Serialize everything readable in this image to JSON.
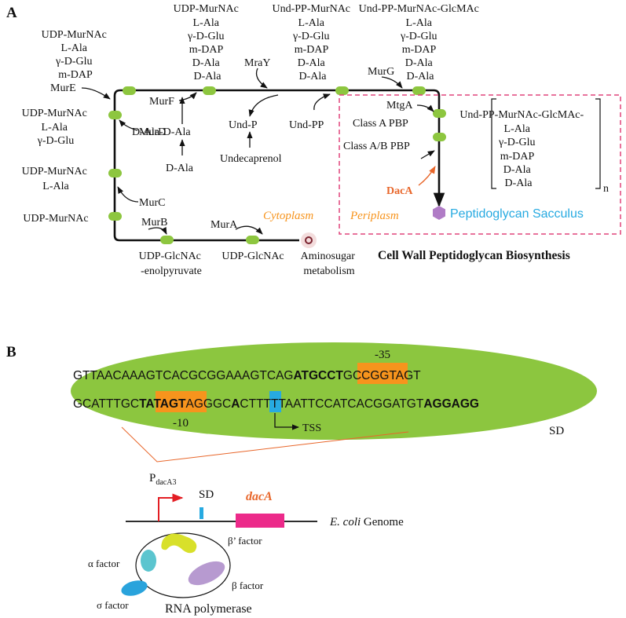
{
  "panel_a": {
    "label": "A",
    "intermediates": {
      "udp_glcnac": "UDP-GlcNAc",
      "udp_glcnac_enol": [
        "UDP-GlcNAc",
        "-enolpyruvate"
      ],
      "udp_murnac": "UDP-MurNAc",
      "udp_murnac_la": [
        "UDP-MurNAc",
        "L-Ala"
      ],
      "udp_murnac_la_glu": [
        "UDP-MurNAc",
        "L-Ala",
        "γ-D-Glu"
      ],
      "udp_murnac_la_glu_dap": [
        "UDP-MurNAc",
        "L-Ala",
        "γ-D-Glu",
        "m-DAP"
      ],
      "udp_murnac_penta": [
        "UDP-MurNAc",
        "L-Ala",
        "γ-D-Glu",
        "m-DAP",
        "D-Ala",
        "D-Ala"
      ],
      "und_pp_murnac_penta": [
        "Und-PP-MurNAc",
        "L-Ala",
        "γ-D-Glu",
        "m-DAP",
        "D-Ala",
        "D-Ala"
      ],
      "und_pp_murnac_glcmac_penta": [
        "Und-PP-MurNAc-GlcMAc",
        "L-Ala",
        "γ-D-Glu",
        "m-DAP",
        "D-Ala",
        "D-Ala"
      ],
      "polymer": [
        "Und-PP-MurNAc-GlcMAc-",
        "L-Ala",
        "γ-D-Glu",
        "m-DAP",
        "D-Ala",
        "D-Ala"
      ],
      "polymer_n": "n"
    },
    "enzymes": {
      "mura": "MurA",
      "murb": "MurB",
      "murc": "MurC",
      "murd": "MurD",
      "mure": "MurE",
      "murf": "MurF",
      "mray": "MraY",
      "murg": "MurG",
      "mtga": "MtgA",
      "class_a_pbp": "Class A PBP",
      "class_ab_pbp": "Class A/B PBP",
      "daca": "DacA"
    },
    "others": {
      "d_ala": "D-Ala",
      "d_ala_d_ala": "D-Ala-D-Ala",
      "und_p": "Und-P",
      "und_pp": "Und-PP",
      "undecaprenol": "Undecaprenol",
      "aminosugar": [
        "Aminosugar",
        "metabolism"
      ],
      "cytoplasm": "Cytoplasm",
      "periplasm": "Periplasm",
      "sacculus": "Peptidoglycan Sacculus",
      "title": "Cell Wall Peptidoglycan Biosynthesis"
    }
  },
  "panel_b": {
    "label": "B",
    "line1": {
      "pre": "GTTAACAAAGTCACGCGGAAAGTCAG",
      "box": "ATGCCT",
      "post": "GCCGGTAGT"
    },
    "line2": {
      "pre": "GCATTTGC",
      "box10": "TATAGT",
      "mid": "AGGGC",
      "tss_base": "A",
      "post": "CTTTTTAATTCCATCACGGATGT",
      "sd": "AGGAGG"
    },
    "minus35": "-35",
    "minus10": "-10",
    "tss": "TSS",
    "sd_label": "SD",
    "promoter": "P",
    "promoter_sub": "dacA3",
    "sd_gene_label": "SD",
    "gene": "dacA",
    "genome_italic": "E. coli",
    "genome_text": " Genome",
    "rnap": {
      "beta_prime": "β’ factor",
      "alpha": "α factor",
      "beta": "β factor",
      "sigma": "σ factor",
      "label": "RNA polymerase"
    }
  },
  "colors": {
    "node_green": "#8dc63f",
    "ellipse_green": "#8cc63f",
    "highlight_orange": "#f7941d",
    "tss_blue": "#27aae1",
    "periplasm_box": "#e0457b",
    "daca_orange": "#e8662a",
    "cyto_orange": "#f7941d",
    "sacculus_blue": "#27aae1",
    "sacculus_purple": "#b07cc6",
    "gene_magenta": "#ec2a8a",
    "promoter_red": "#e31e24",
    "beta_prime_yellow": "#d8e02a",
    "alpha_teal": "#5bc5cf",
    "beta_purple": "#b79ad0",
    "sigma_blue": "#29a3dc"
  }
}
